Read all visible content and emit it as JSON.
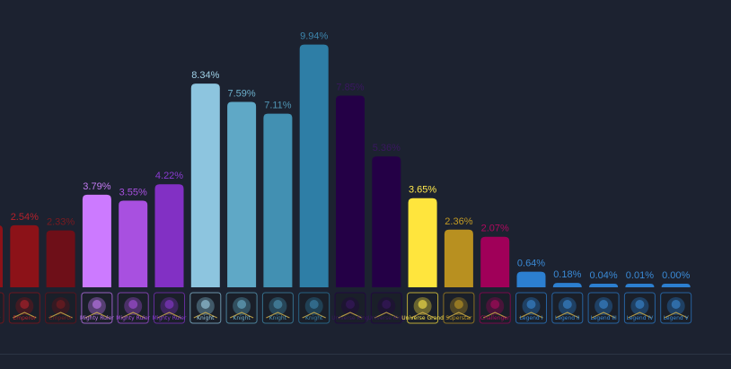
{
  "chart_data": {
    "type": "bar",
    "ylim": [
      0,
      10
    ],
    "grid": false,
    "legend": "none",
    "categories": [
      {
        "label": "",
        "value": null,
        "color": "#8c1218",
        "label_color": "#b5212b",
        "icon": "character-portrait-icon",
        "icon_text": ""
      },
      {
        "label": "2.54%",
        "value": 2.54,
        "color": "#8c1218",
        "label_color": "#b5212b",
        "icon": "character-portrait-icon",
        "icon_text": "Emperor"
      },
      {
        "label": "2.33%",
        "value": 2.33,
        "color": "#6e0f18",
        "label_color": "#7a1a20",
        "icon": "character-portrait-icon",
        "icon_text": "Emperor"
      },
      {
        "label": "3.79%",
        "value": 3.79,
        "color": "#cc7aff",
        "label_color": "#c27af0",
        "icon": "character-portrait-icon",
        "icon_text": "Mighty Ruler"
      },
      {
        "label": "3.55%",
        "value": 3.55,
        "color": "#a850e0",
        "label_color": "#a850e0",
        "icon": "character-portrait-icon",
        "icon_text": "Mighty Ruler"
      },
      {
        "label": "4.22%",
        "value": 4.22,
        "color": "#8230c4",
        "label_color": "#8a3bd1",
        "icon": "character-portrait-icon",
        "icon_text": "Mighty Ruler"
      },
      {
        "label": "8.34%",
        "value": 8.34,
        "color": "#8dc5df",
        "label_color": "#9fd0e6",
        "icon": "character-portrait-icon",
        "icon_text": "Knight"
      },
      {
        "label": "7.59%",
        "value": 7.59,
        "color": "#5fa8c6",
        "label_color": "#6cb0cc",
        "icon": "character-portrait-icon",
        "icon_text": "Knight"
      },
      {
        "label": "7.11%",
        "value": 7.11,
        "color": "#4290b2",
        "label_color": "#5096b5",
        "icon": "character-portrait-icon",
        "icon_text": "Knight"
      },
      {
        "label": "9.94%",
        "value": 9.94,
        "color": "#2e7ea6",
        "label_color": "#3d86ad",
        "icon": "character-portrait-icon",
        "icon_text": "Knight"
      },
      {
        "label": "7.85%",
        "value": 7.85,
        "color": "#240046",
        "label_color": "#3a1760",
        "icon": "character-portrait-icon",
        "icon_text": "Universe King"
      },
      {
        "label": "5.36%",
        "value": 5.36,
        "color": "#240046",
        "label_color": "#3a1760",
        "icon": "character-portrait-icon",
        "icon_text": "Universe King"
      },
      {
        "label": "3.65%",
        "value": 3.65,
        "color": "#ffe53d",
        "label_color": "#ffe94d",
        "icon": "character-portrait-icon",
        "icon_text": "Universe Grand"
      },
      {
        "label": "2.36%",
        "value": 2.36,
        "color": "#b89020",
        "label_color": "#c29a24",
        "icon": "character-portrait-icon",
        "icon_text": "Superstar"
      },
      {
        "label": "2.07%",
        "value": 2.07,
        "color": "#a00059",
        "label_color": "#b0095f",
        "icon": "character-portrait-icon",
        "icon_text": "Challenger"
      },
      {
        "label": "0.64%",
        "value": 0.64,
        "color": "#2c7fd0",
        "label_color": "#3a8ad6",
        "icon": "character-portrait-icon",
        "icon_text": "Legend I"
      },
      {
        "label": "0.18%",
        "value": 0.18,
        "color": "#2c7fd0",
        "label_color": "#3a8ad6",
        "icon": "character-portrait-icon",
        "icon_text": "Legend II"
      },
      {
        "label": "0.04%",
        "value": 0.04,
        "color": "#2c7fd0",
        "label_color": "#3a8ad6",
        "icon": "character-portrait-icon",
        "icon_text": "Legend III"
      },
      {
        "label": "0.01%",
        "value": 0.01,
        "color": "#2c7fd0",
        "label_color": "#3a8ad6",
        "icon": "character-portrait-icon",
        "icon_text": "Legend IV"
      },
      {
        "label": "0.00%",
        "value": 0.0,
        "color": "#2c7fd0",
        "label_color": "#3a8ad6",
        "icon": "character-portrait-icon",
        "icon_text": "Legend V"
      }
    ]
  }
}
